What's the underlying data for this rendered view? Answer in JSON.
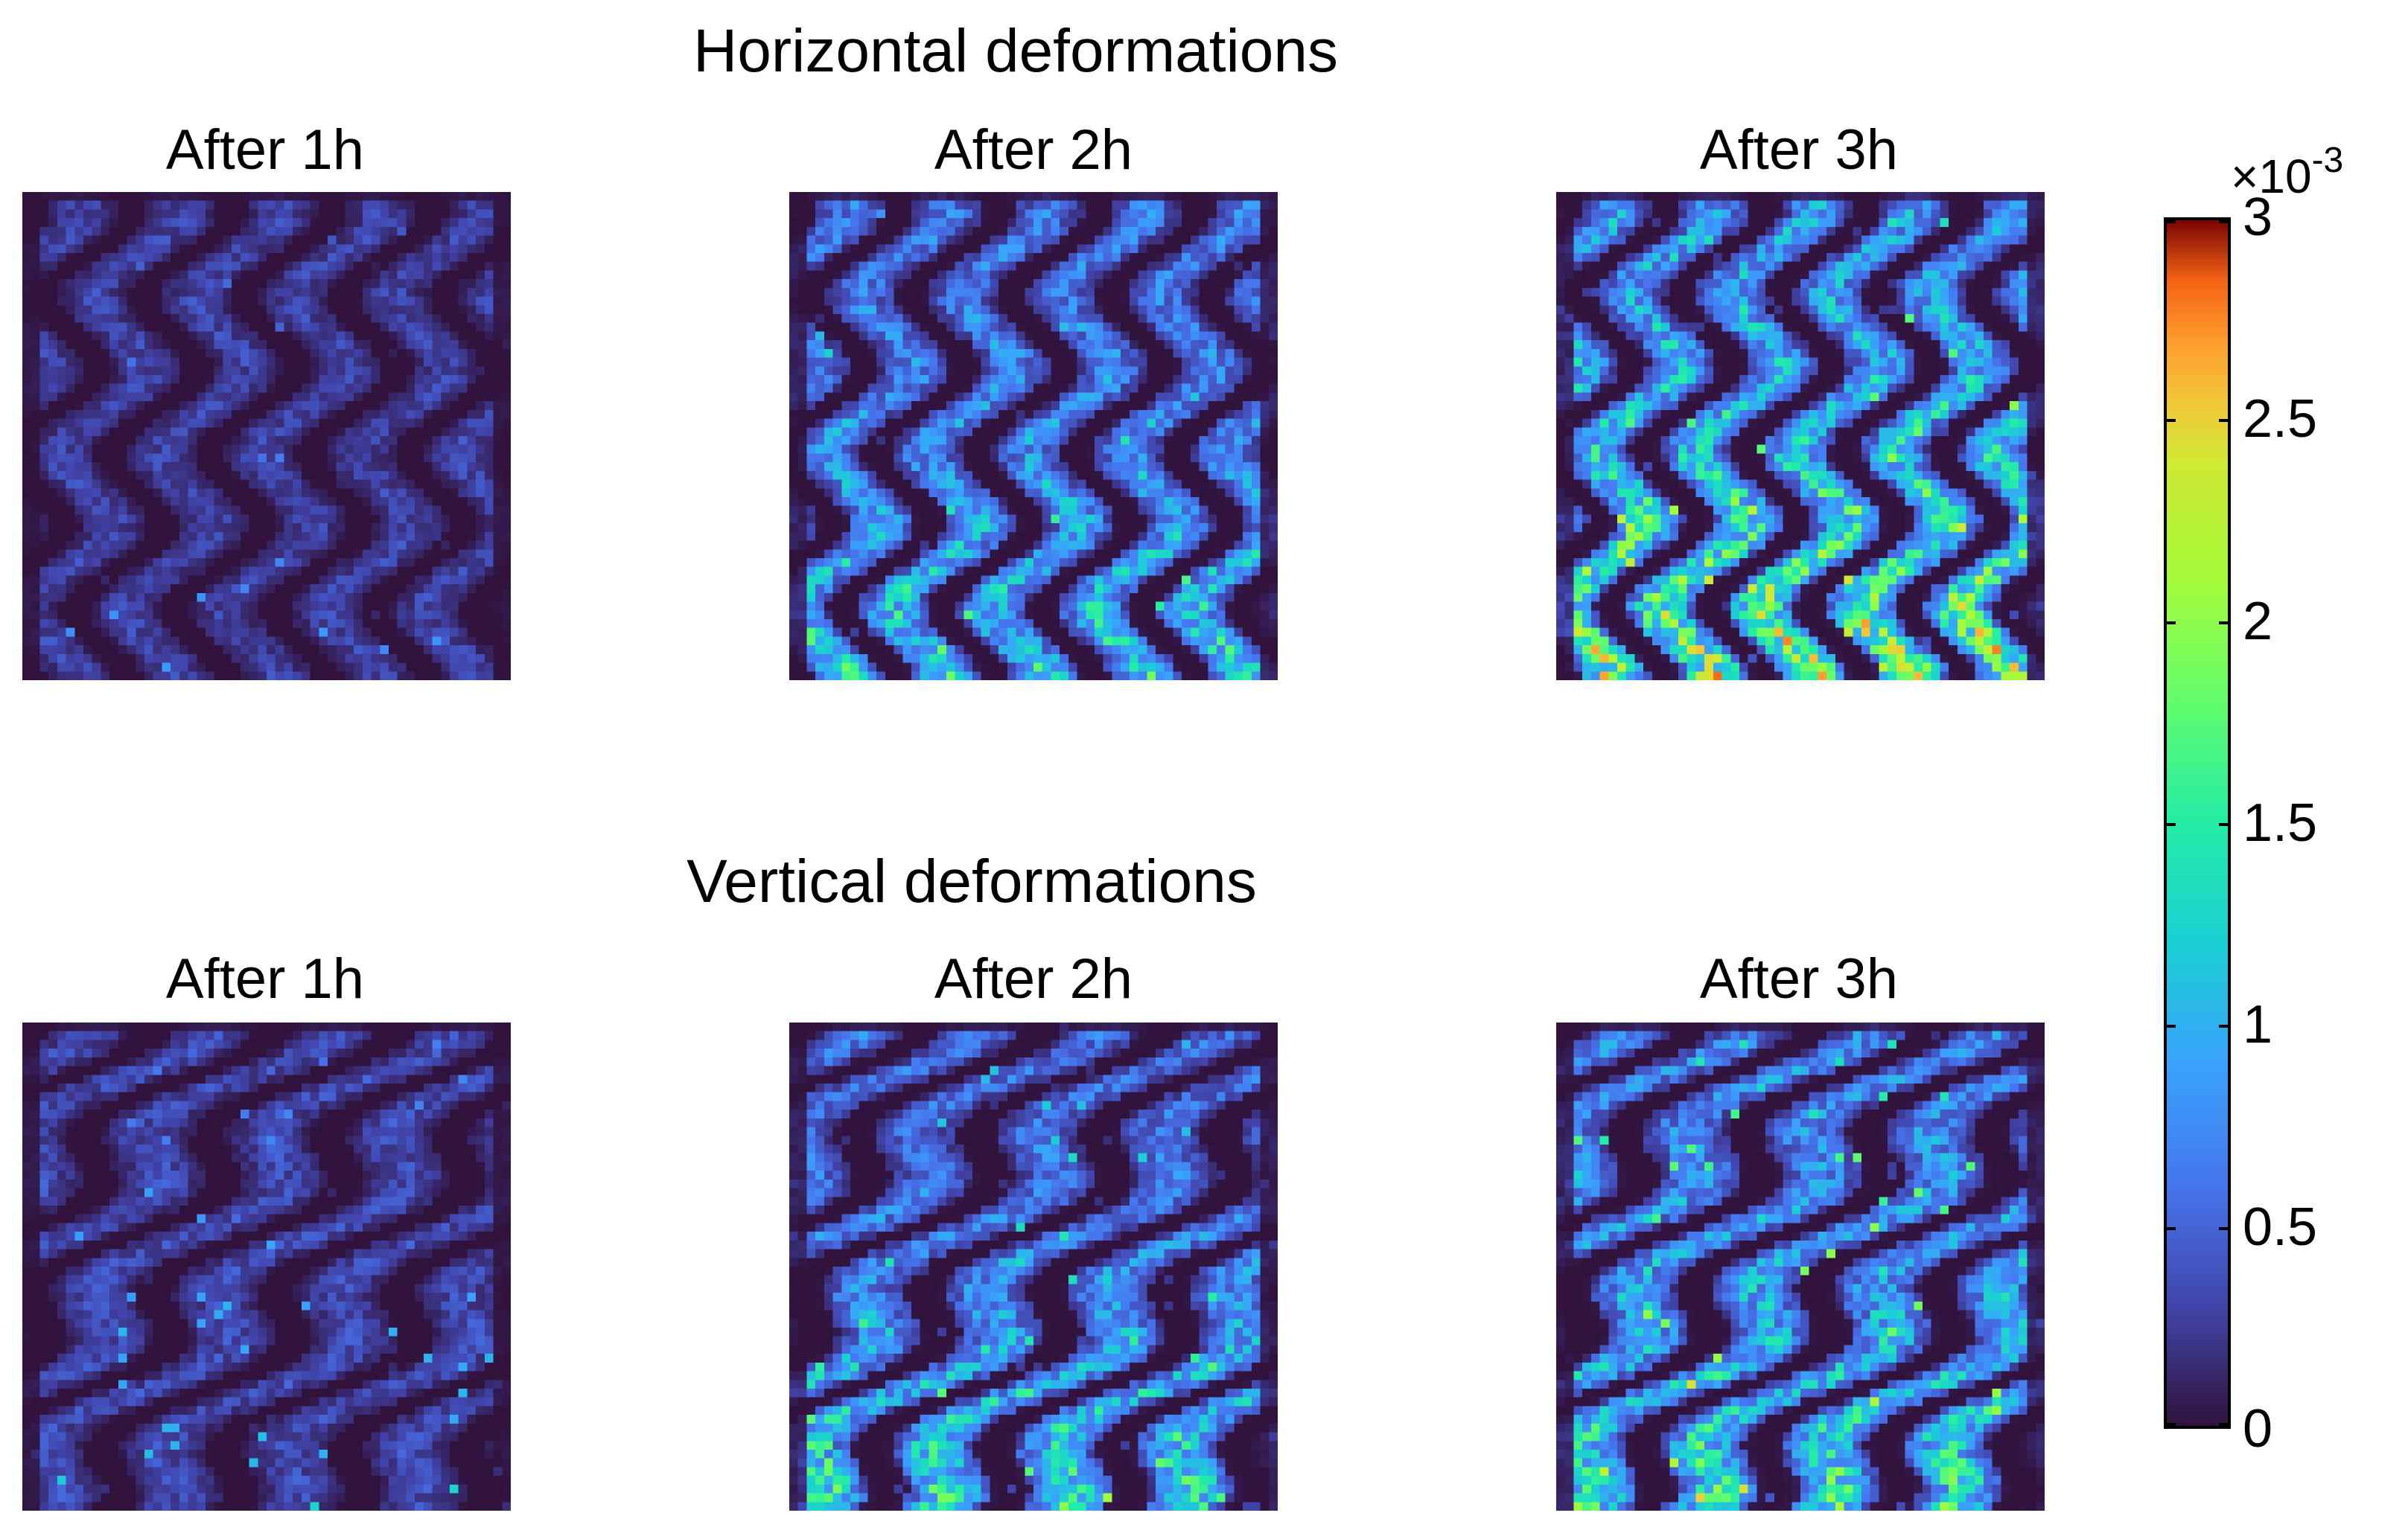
{
  "chart_data": {
    "type": "heatmap",
    "title": "",
    "colormap": "turbo",
    "colorbar": {
      "ticks": [
        0,
        0.5,
        1,
        1.5,
        2,
        2.5,
        3
      ],
      "tick_labels": [
        "0",
        "0.5",
        "1",
        "1.5",
        "2",
        "2.5",
        "3"
      ],
      "range": [
        0,
        3
      ],
      "multiplier": "×10",
      "multiplier_exponent": "-3"
    },
    "sections": [
      {
        "title": "Horizontal deformations",
        "panels": [
          {
            "title": "After 1h",
            "mean_level": 0.35,
            "peak_level": 0.9,
            "bottom_bias": 0.0
          },
          {
            "title": "After 2h",
            "mean_level": 0.75,
            "peak_level": 1.9,
            "bottom_bias": 0.6
          },
          {
            "title": "After 3h",
            "mean_level": 1.0,
            "peak_level": 2.8,
            "bottom_bias": 0.8
          }
        ]
      },
      {
        "title": "Vertical deformations",
        "panels": [
          {
            "title": "After 1h",
            "mean_level": 0.4,
            "peak_level": 1.3,
            "bottom_bias": 0.0
          },
          {
            "title": "After 2h",
            "mean_level": 0.65,
            "peak_level": 2.1,
            "bottom_bias": 0.9
          },
          {
            "title": "After 3h",
            "mean_level": 0.85,
            "peak_level": 2.8,
            "bottom_bias": 0.6
          }
        ]
      }
    ]
  }
}
